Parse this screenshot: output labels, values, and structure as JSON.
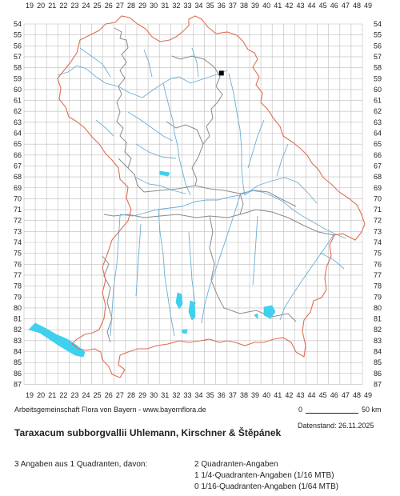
{
  "map": {
    "x_labels": [
      "19",
      "20",
      "21",
      "22",
      "23",
      "24",
      "25",
      "26",
      "27",
      "28",
      "29",
      "30",
      "31",
      "32",
      "33",
      "34",
      "35",
      "36",
      "37",
      "38",
      "39",
      "40",
      "41",
      "42",
      "43",
      "44",
      "45",
      "46",
      "47",
      "48",
      "49"
    ],
    "y_labels": [
      "54",
      "55",
      "56",
      "57",
      "58",
      "59",
      "60",
      "61",
      "62",
      "63",
      "64",
      "65",
      "66",
      "67",
      "68",
      "69",
      "70",
      "71",
      "72",
      "73",
      "74",
      "75",
      "76",
      "77",
      "78",
      "79",
      "80",
      "81",
      "82",
      "83",
      "84",
      "85",
      "86",
      "87"
    ],
    "occurrences": [
      {
        "x": "36",
        "y": "58"
      }
    ],
    "colors": {
      "grid": "#bdbdbd",
      "state_border": "#e06d52",
      "district_border": "#8a8a8a",
      "rivers": "#6aaed6",
      "lakes": "#3fd0ee",
      "occurrence": "#000000"
    }
  },
  "footer": {
    "credit": "Arbeitsgemeinschaft Flora von Bayern - www.bayernflora.de",
    "scale_zero": "0",
    "scale_end": "50 km",
    "date": "Datenstand: 26.11.2025",
    "title": "Taraxacum subborgvallii Uhlemann, Kirschner & Štěpánek",
    "summary": "3 Angaben aus 1 Quadranten, davon:",
    "stats": [
      "2 Quadranten-Angaben",
      "1 1/4-Quadranten-Angaben (1/16 MTB)",
      "0 1/16-Quadranten-Angaben (1/64 MTB)"
    ]
  }
}
